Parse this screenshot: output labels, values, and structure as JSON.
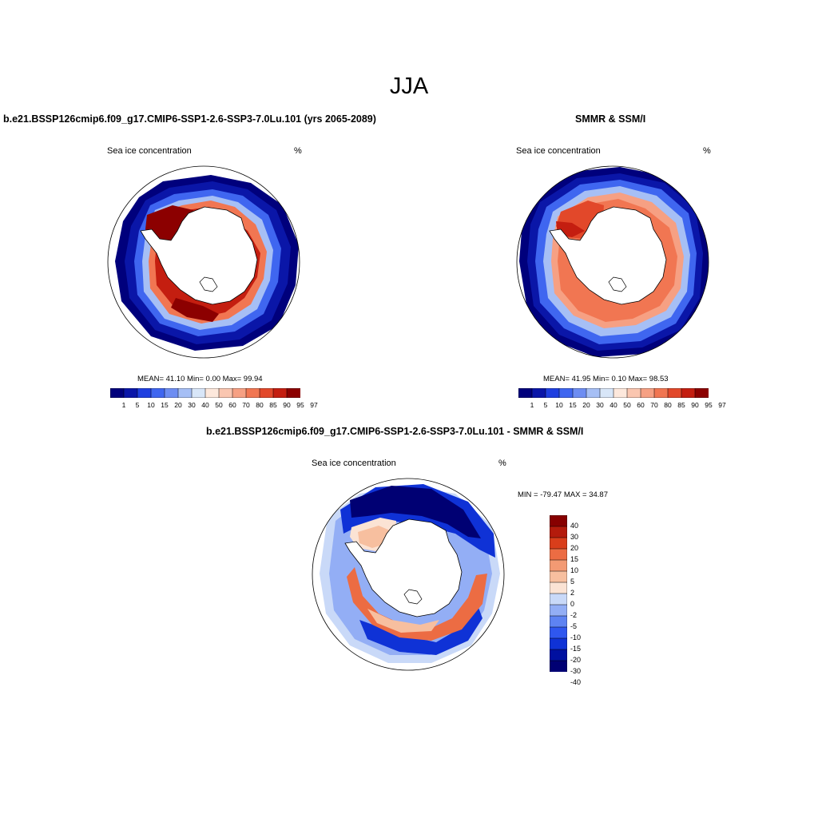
{
  "title": "JJA",
  "palette_sic": [
    "#00007c",
    "#0a16a8",
    "#1f3fe0",
    "#3f66f0",
    "#6d8df2",
    "#a6bff5",
    "#d8e6f8",
    "#fde8dc",
    "#fac6b0",
    "#f6a083",
    "#f17652",
    "#e2482a",
    "#c41e10",
    "#8c0000"
  ],
  "palette_diff": [
    "#000073",
    "#0010a0",
    "#0f32d6",
    "#2f57ef",
    "#5e83f2",
    "#93aef5",
    "#c9d9f8",
    "#fbe3d4",
    "#f7bf9f",
    "#f39a73",
    "#ec6c43",
    "#d93e1b",
    "#b41b0c",
    "#870000"
  ],
  "panels": [
    {
      "id": "model",
      "title": "b.e21.BSSP126cmip6.f09_g17.CMIP6-SSP1-2.6-SSP3-7.0Lu.101 (yrs 2065-2089)",
      "left_label": "Sea ice concentration",
      "right_label": "%",
      "stats": "MEAN=  41.10  Min=    0.00  Max=  99.94",
      "colorbar_labels": [
        "1",
        "5",
        "10",
        "15",
        "20",
        "30",
        "40",
        "50",
        "60",
        "70",
        "80",
        "85",
        "90",
        "95",
        "97"
      ]
    },
    {
      "id": "obs",
      "title": "SMMR & SSM/I",
      "left_label": "Sea ice concentration",
      "right_label": "%",
      "stats": "MEAN=  41.95  Min=    0.10  Max=  98.53",
      "colorbar_labels": [
        "1",
        "5",
        "10",
        "15",
        "20",
        "30",
        "40",
        "50",
        "60",
        "70",
        "80",
        "85",
        "90",
        "95",
        "97"
      ]
    },
    {
      "id": "diff",
      "title": "b.e21.BSSP126cmip6.f09_g17.CMIP6-SSP1-2.6-SSP3-7.0Lu.101 - SMMR & SSM/I",
      "left_label": "Sea ice concentration",
      "right_label": "%",
      "stats": "MIN = -79.47 MAX =  34.87",
      "colorbar_labels": [
        "40",
        "30",
        "20",
        "15",
        "10",
        "5",
        "2",
        "0",
        "-2",
        "-5",
        "-10",
        "-15",
        "-20",
        "-30",
        "-40"
      ]
    }
  ]
}
